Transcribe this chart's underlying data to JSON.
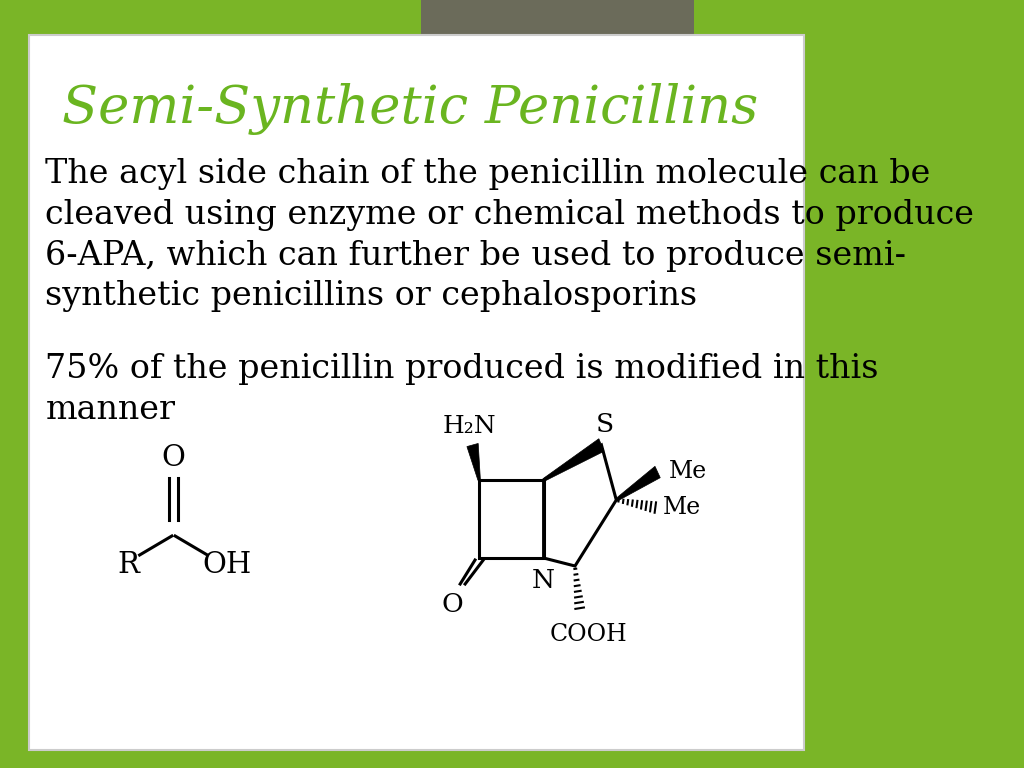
{
  "title": "Semi-Synthetic Penicillins",
  "title_color": "#6ab520",
  "title_fontsize": 38,
  "body_text_1": "The acyl side chain of the penicillin molecule can be\ncleaved using enzyme or chemical methods to produce\n6-APA, which can further be used to produce semi-\nsynthetic penicillins or cephalosporins",
  "body_text_2": "75% of the penicillin produced is modified in this\nmanner",
  "body_fontsize": 24,
  "bg_outer": "#7ab527",
  "bg_slide": "#ffffff",
  "tab_color": "#6b6b5a",
  "text_color": "#000000"
}
